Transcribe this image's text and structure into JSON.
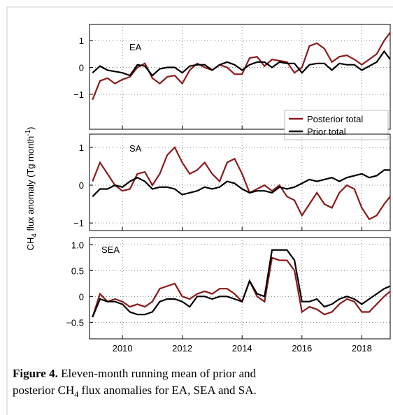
{
  "chart_data": [
    {
      "type": "line",
      "title": "EA",
      "legend": "lower right",
      "x": [
        2009,
        2009.25,
        2009.5,
        2009.75,
        2010,
        2010.25,
        2010.5,
        2010.75,
        2011,
        2011.25,
        2011.5,
        2011.75,
        2012,
        2012.25,
        2012.5,
        2012.75,
        2013,
        2013.25,
        2013.5,
        2013.75,
        2014,
        2014.25,
        2014.5,
        2014.75,
        2015,
        2015.25,
        2015.5,
        2015.75,
        2016,
        2016.25,
        2016.5,
        2016.75,
        2017,
        2017.25,
        2017.5,
        2017.75,
        2018,
        2018.25,
        2018.5,
        2018.75,
        2018.95
      ],
      "series": [
        {
          "name": "Posterior total",
          "color": "#8b1a1a",
          "values": [
            -1.2,
            -0.5,
            -0.4,
            -0.6,
            -0.45,
            -0.35,
            0.0,
            0.15,
            -0.4,
            -0.6,
            -0.35,
            -0.3,
            -0.6,
            -0.1,
            0.15,
            0.0,
            -0.1,
            0.1,
            0.0,
            -0.25,
            -0.25,
            0.35,
            0.4,
            0.05,
            0.3,
            0.25,
            0.2,
            -0.2,
            0.0,
            0.8,
            0.9,
            0.7,
            0.2,
            0.4,
            0.45,
            0.3,
            0.1,
            0.3,
            0.5,
            1.0,
            1.3
          ]
        },
        {
          "name": "Prior total",
          "color": "#000000",
          "values": [
            -0.2,
            0.05,
            -0.1,
            -0.15,
            -0.2,
            -0.3,
            0.1,
            0.05,
            -0.3,
            -0.05,
            0.0,
            0.0,
            -0.2,
            0.05,
            0.1,
            0.1,
            -0.1,
            0.1,
            0.2,
            0.1,
            -0.1,
            0.1,
            0.2,
            0.2,
            0.0,
            0.2,
            0.15,
            0.15,
            -0.2,
            0.1,
            0.15,
            0.15,
            -0.1,
            0.15,
            0.1,
            0.1,
            -0.1,
            0.05,
            0.2,
            0.6,
            0.3
          ]
        }
      ],
      "xlim": [
        2008.9,
        2018.95
      ],
      "ylim": [
        -2.3,
        1.6
      ],
      "yticks": [
        {
          "value": -1,
          "label": "−1"
        },
        0,
        1
      ],
      "grid": true
    },
    {
      "type": "line",
      "title": "SA",
      "x": [
        2009,
        2009.25,
        2009.5,
        2009.75,
        2010,
        2010.25,
        2010.5,
        2010.75,
        2011,
        2011.25,
        2011.5,
        2011.75,
        2012,
        2012.25,
        2012.5,
        2012.75,
        2013,
        2013.25,
        2013.5,
        2013.75,
        2014,
        2014.25,
        2014.5,
        2014.75,
        2015,
        2015.25,
        2015.5,
        2015.75,
        2016,
        2016.25,
        2016.5,
        2016.75,
        2017,
        2017.25,
        2017.5,
        2017.75,
        2018,
        2018.25,
        2018.5,
        2018.75,
        2018.95
      ],
      "series": [
        {
          "color": "#8b1a1a",
          "values": [
            0.1,
            0.6,
            0.3,
            0.0,
            -0.15,
            -0.1,
            0.3,
            0.35,
            0.0,
            0.3,
            0.8,
            1.0,
            0.6,
            0.3,
            0.4,
            0.6,
            0.3,
            0.1,
            0.6,
            0.7,
            0.3,
            -0.2,
            -0.1,
            0.0,
            -0.15,
            0.0,
            -0.3,
            -0.4,
            -0.8,
            -0.5,
            -0.2,
            -0.5,
            -0.6,
            -0.2,
            0.0,
            -0.1,
            -0.6,
            -0.9,
            -0.8,
            -0.5,
            -0.3
          ]
        },
        {
          "color": "#000000",
          "values": [
            -0.3,
            -0.1,
            -0.1,
            0.0,
            -0.05,
            0.1,
            0.2,
            0.1,
            -0.1,
            -0.05,
            -0.05,
            -0.1,
            -0.25,
            -0.2,
            -0.15,
            -0.05,
            -0.1,
            -0.05,
            0.1,
            0.05,
            -0.1,
            -0.2,
            -0.15,
            -0.15,
            -0.2,
            -0.05,
            -0.1,
            -0.05,
            0.05,
            0.15,
            0.1,
            0.15,
            0.2,
            0.1,
            0.2,
            0.25,
            0.3,
            0.2,
            0.25,
            0.4,
            0.4
          ]
        }
      ],
      "xlim": [
        2008.9,
        2018.95
      ],
      "ylim": [
        -1.2,
        1.35
      ],
      "yticks": [
        {
          "value": -1,
          "label": "−1"
        },
        0,
        1
      ],
      "grid": true
    },
    {
      "type": "line",
      "title": "SEA",
      "x": [
        2009,
        2009.25,
        2009.5,
        2009.75,
        2010,
        2010.25,
        2010.5,
        2010.75,
        2011,
        2011.25,
        2011.5,
        2011.75,
        2012,
        2012.25,
        2012.5,
        2012.75,
        2013,
        2013.25,
        2013.5,
        2013.75,
        2014,
        2014.25,
        2014.5,
        2014.75,
        2015,
        2015.25,
        2015.5,
        2015.75,
        2016,
        2016.25,
        2016.5,
        2016.75,
        2017,
        2017.25,
        2017.5,
        2017.75,
        2018,
        2018.25,
        2018.5,
        2018.75,
        2018.95
      ],
      "series": [
        {
          "color": "#8b1a1a",
          "values": [
            -0.4,
            0.05,
            -0.1,
            -0.05,
            -0.1,
            -0.2,
            -0.15,
            -0.2,
            -0.1,
            0.15,
            0.2,
            0.25,
            0.0,
            -0.05,
            0.05,
            0.1,
            0.05,
            0.15,
            0.15,
            0.05,
            -0.1,
            0.3,
            0.0,
            -0.1,
            0.75,
            0.7,
            0.7,
            0.5,
            -0.3,
            -0.2,
            -0.25,
            -0.35,
            -0.3,
            -0.15,
            -0.05,
            -0.1,
            -0.3,
            -0.3,
            -0.15,
            0.0,
            0.1
          ]
        },
        {
          "color": "#000000",
          "values": [
            -0.4,
            -0.05,
            -0.1,
            -0.1,
            -0.15,
            -0.3,
            -0.35,
            -0.35,
            -0.3,
            -0.1,
            -0.05,
            -0.05,
            -0.1,
            -0.2,
            0.0,
            0.0,
            -0.05,
            0.0,
            0.0,
            -0.05,
            -0.1,
            0.3,
            0.05,
            0.0,
            0.9,
            0.9,
            0.9,
            0.7,
            -0.1,
            -0.1,
            -0.05,
            -0.2,
            -0.15,
            -0.05,
            0.0,
            -0.05,
            -0.15,
            -0.05,
            0.05,
            0.15,
            0.2
          ]
        }
      ],
      "xlim": [
        2008.9,
        2018.95
      ],
      "ylim": [
        -0.82,
        1.14
      ],
      "xticks": [
        2010,
        2012,
        2014,
        2016,
        2018
      ],
      "yticks": [
        {
          "value": -0.5,
          "label": "−0.5"
        },
        0,
        0.5,
        {
          "value": 1.0,
          "label": "1.0"
        }
      ],
      "grid": true
    }
  ],
  "ylabel_parts": [
    "CH",
    "4",
    " flux anomaly (Tg month",
    "-1",
    ")"
  ],
  "caption": {
    "label": "Figure 4.",
    "parts": [
      " Eleven-month running mean of prior and",
      "posterior CH",
      "4",
      " flux anomalies for EA, SEA and SA."
    ]
  }
}
